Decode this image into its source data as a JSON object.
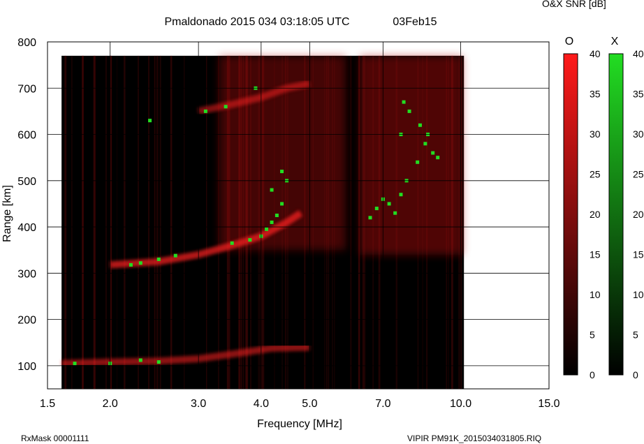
{
  "header": {
    "title": "Pmaldonado 2015 034 03:18:05 UTC",
    "date": "03Feb15",
    "snr_label": "O&X SNR [dB]"
  },
  "footer": {
    "rxmask": "RxMask 00001111",
    "file": "VIPIR  PM91K_2015034031805.RIQ"
  },
  "colors": {
    "o_mode": "#ff1a1a",
    "x_mode": "#22dd22",
    "background": "#000000"
  },
  "chart_data": {
    "type": "heatmap",
    "title": "Pmaldonado 2015 034 03:18:05 UTC",
    "xlabel": "Frequency [MHz]",
    "ylabel": "Range [km]",
    "x_scale": "log",
    "xlim": [
      1.5,
      15.0
    ],
    "ylim": [
      50,
      800
    ],
    "x_ticks": [
      1.5,
      2.0,
      3.0,
      4.0,
      5.0,
      7.0,
      10.0,
      15.0
    ],
    "x_tick_labels": [
      "1.5",
      "2.0",
      "3.0",
      "4.0",
      "5.0",
      "7.0",
      "10.0",
      "15.0"
    ],
    "y_ticks": [
      100,
      200,
      300,
      400,
      500,
      600,
      700,
      800
    ],
    "y_tick_labels": [
      "100",
      "200",
      "300",
      "400",
      "500",
      "600",
      "700",
      "800"
    ],
    "data_extent": {
      "freq_range": [
        1.6,
        10.15
      ],
      "range_range": [
        50,
        770
      ]
    },
    "grid": true,
    "colorbars": [
      {
        "name": "O",
        "range": [
          0,
          40
        ],
        "ticks": [
          "0",
          "5",
          "10",
          "15",
          "20",
          "25",
          "30",
          "35",
          "40"
        ],
        "color": "#ff1a1a"
      },
      {
        "name": "X",
        "range": [
          0,
          40
        ],
        "ticks": [
          "0",
          "5",
          "10",
          "15",
          "20",
          "25",
          "30",
          "35",
          "40"
        ],
        "color": "#22dd22"
      }
    ],
    "o_traces": [
      {
        "f": [
          1.6,
          2.0,
          2.5,
          3.0,
          3.5,
          4.2,
          5.0
        ],
        "r": [
          105,
          108,
          110,
          115,
          125,
          138,
          140
        ],
        "snr": 22
      },
      {
        "f": [
          2.0,
          2.5,
          3.0,
          3.5,
          4.0,
          4.5,
          4.8
        ],
        "r": [
          318,
          325,
          340,
          360,
          380,
          410,
          430
        ],
        "snr": 28
      },
      {
        "f": [
          3.0,
          3.5,
          4.0,
          4.5,
          5.0
        ],
        "r": [
          650,
          665,
          680,
          700,
          710
        ],
        "snr": 20
      }
    ],
    "o_regions": [
      {
        "f": [
          3.3,
          5.9
        ],
        "r": [
          350,
          770
        ],
        "snr": 22
      },
      {
        "f": [
          6.3,
          10.1
        ],
        "r": [
          340,
          770
        ],
        "snr": 26
      }
    ],
    "x_points": [
      {
        "f": 1.7,
        "r": 105
      },
      {
        "f": 2.0,
        "r": 105
      },
      {
        "f": 2.3,
        "r": 112
      },
      {
        "f": 2.5,
        "r": 108
      },
      {
        "f": 2.2,
        "r": 318
      },
      {
        "f": 2.3,
        "r": 322
      },
      {
        "f": 2.5,
        "r": 330
      },
      {
        "f": 2.7,
        "r": 338
      },
      {
        "f": 3.5,
        "r": 365
      },
      {
        "f": 3.8,
        "r": 372
      },
      {
        "f": 4.0,
        "r": 380
      },
      {
        "f": 4.1,
        "r": 395
      },
      {
        "f": 4.2,
        "r": 410
      },
      {
        "f": 4.3,
        "r": 425
      },
      {
        "f": 4.4,
        "r": 450
      },
      {
        "f": 4.5,
        "r": 500
      },
      {
        "f": 4.4,
        "r": 520
      },
      {
        "f": 4.2,
        "r": 480
      },
      {
        "f": 6.6,
        "r": 420
      },
      {
        "f": 6.8,
        "r": 440
      },
      {
        "f": 7.0,
        "r": 460
      },
      {
        "f": 7.2,
        "r": 450
      },
      {
        "f": 7.4,
        "r": 430
      },
      {
        "f": 7.6,
        "r": 470
      },
      {
        "f": 7.8,
        "r": 500
      },
      {
        "f": 8.2,
        "r": 540
      },
      {
        "f": 8.5,
        "r": 580
      },
      {
        "f": 8.8,
        "r": 560
      },
      {
        "f": 9.0,
        "r": 550
      },
      {
        "f": 8.6,
        "r": 600
      },
      {
        "f": 8.3,
        "r": 620
      },
      {
        "f": 7.9,
        "r": 650
      },
      {
        "f": 7.6,
        "r": 600
      },
      {
        "f": 7.7,
        "r": 670
      },
      {
        "f": 3.1,
        "r": 650
      },
      {
        "f": 3.4,
        "r": 660
      },
      {
        "f": 3.9,
        "r": 700
      },
      {
        "f": 2.4,
        "r": 630
      }
    ]
  }
}
